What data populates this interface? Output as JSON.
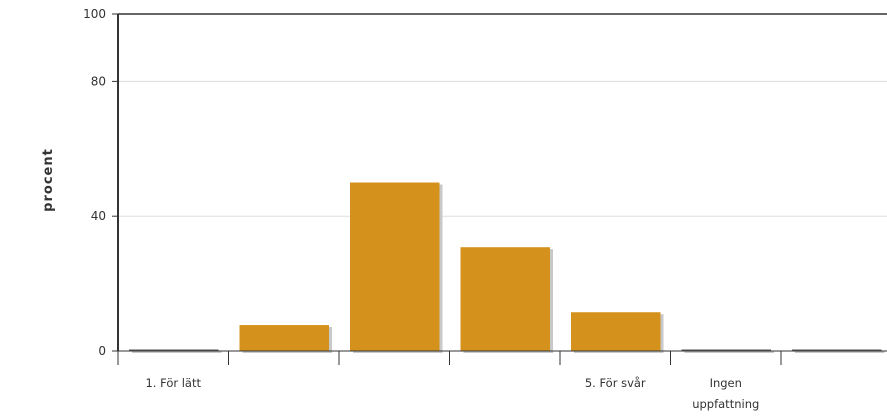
{
  "chart_data": {
    "type": "bar",
    "title": "",
    "xlabel": "",
    "ylabel": "procent",
    "ylim": [
      0,
      100
    ],
    "yticks": [
      0,
      40,
      80,
      100
    ],
    "grid": true,
    "categories": [
      "1. För lätt",
      "",
      "",
      "",
      "5. För svår",
      "Ingen uppfattning",
      ""
    ],
    "category_label_lines": [
      [
        "1. För lätt"
      ],
      [
        ""
      ],
      [
        ""
      ],
      [
        ""
      ],
      [
        "5. För svår"
      ],
      [
        "Ingen",
        "uppfattning"
      ],
      [
        ""
      ]
    ],
    "values": [
      0,
      7.7,
      50,
      30.8,
      11.5,
      0,
      0
    ],
    "colors": {
      "bar": "#d4921c",
      "shadow": "#c8c8c8",
      "axis": "#333333",
      "grid": "#dddddd"
    }
  }
}
